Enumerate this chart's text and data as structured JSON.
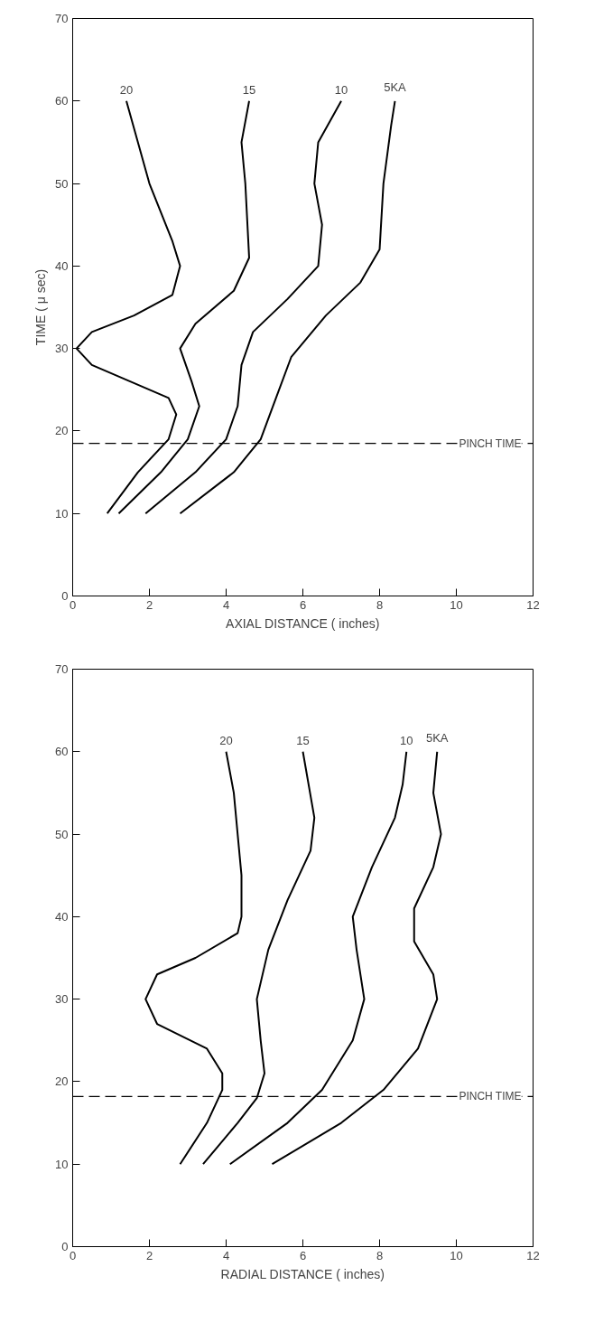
{
  "chart_data": [
    {
      "type": "line",
      "xlabel": "AXIAL DISTANCE ( inches)",
      "ylabel": "TIME ( μ sec)",
      "xlim": [
        0,
        12
      ],
      "ylim": [
        0,
        70
      ],
      "xticks": [
        0,
        2,
        4,
        6,
        8,
        10,
        12
      ],
      "yticks": [
        0,
        10,
        20,
        30,
        40,
        50,
        60,
        70
      ],
      "grid": false,
      "ref_lines": [
        {
          "axis": "y",
          "value": 18.5,
          "label": "PINCH TIME",
          "line_style": "dashed"
        }
      ],
      "series": [
        {
          "name": "20",
          "color": "#000000",
          "x": [
            0.9,
            1.7,
            2.5,
            2.7,
            2.5,
            1.5,
            0.5,
            0.1,
            0.5,
            1.6,
            2.6,
            2.8,
            2.6,
            2.0,
            1.4
          ],
          "values": [
            10,
            15,
            19,
            22,
            24,
            26,
            28,
            30,
            32,
            34,
            36.5,
            40,
            43,
            50,
            60
          ]
        },
        {
          "name": "15",
          "color": "#000000",
          "x": [
            1.2,
            2.3,
            3.0,
            3.3,
            3.1,
            2.8,
            3.2,
            4.2,
            4.6,
            4.5,
            4.4,
            4.6
          ],
          "values": [
            10,
            15,
            19,
            23,
            26,
            30,
            33,
            37,
            41,
            50,
            55,
            60
          ]
        },
        {
          "name": "10",
          "color": "#000000",
          "x": [
            1.9,
            3.2,
            4.0,
            4.3,
            4.4,
            4.7,
            5.6,
            6.4,
            6.5,
            6.3,
            6.4,
            7.0
          ],
          "values": [
            10,
            15,
            19,
            23,
            28,
            32,
            36,
            40,
            45,
            50,
            55,
            60
          ]
        },
        {
          "name": "5KA",
          "color": "#000000",
          "x": [
            2.8,
            4.2,
            4.9,
            5.3,
            5.7,
            6.6,
            7.5,
            8.0,
            8.1,
            8.3,
            8.4
          ],
          "values": [
            10,
            15,
            19,
            24,
            29,
            34,
            38,
            42,
            50,
            57,
            60
          ]
        }
      ]
    },
    {
      "type": "line",
      "xlabel": "RADIAL DISTANCE ( inches)",
      "xlim": [
        0,
        12
      ],
      "ylim": [
        0,
        70
      ],
      "xticks": [
        0,
        2,
        4,
        6,
        8,
        10,
        12
      ],
      "yticks": [
        0,
        10,
        20,
        30,
        40,
        50,
        60,
        70
      ],
      "grid": false,
      "ref_lines": [
        {
          "axis": "y",
          "value": 18.2,
          "label": "PINCH TIME",
          "line_style": "dashed"
        }
      ],
      "series": [
        {
          "name": "20",
          "color": "#000000",
          "x": [
            2.8,
            3.5,
            3.9,
            3.9,
            3.5,
            2.2,
            1.9,
            2.2,
            3.2,
            4.3,
            4.4,
            4.4,
            4.3,
            4.2,
            4.0
          ],
          "values": [
            10,
            15,
            19,
            21,
            24,
            27,
            30,
            33,
            35,
            38,
            40,
            45,
            50,
            55,
            60
          ]
        },
        {
          "name": "15",
          "color": "#000000",
          "x": [
            3.4,
            4.3,
            4.8,
            5.0,
            4.9,
            4.8,
            5.1,
            5.6,
            6.2,
            6.3,
            6.0
          ],
          "values": [
            10,
            15,
            18,
            21,
            25,
            30,
            36,
            42,
            48,
            52,
            60
          ]
        },
        {
          "name": "10",
          "color": "#000000",
          "x": [
            4.1,
            5.6,
            6.5,
            7.3,
            7.6,
            7.4,
            7.3,
            7.8,
            8.4,
            8.6,
            8.7
          ],
          "values": [
            10,
            15,
            19,
            25,
            30,
            36,
            40,
            46,
            52,
            56,
            60
          ]
        },
        {
          "name": "5KA",
          "color": "#000000",
          "x": [
            5.2,
            7.0,
            8.1,
            9.0,
            9.5,
            9.4,
            8.9,
            8.9,
            9.4,
            9.6,
            9.4,
            9.5
          ],
          "values": [
            10,
            15,
            19,
            24,
            30,
            33,
            37,
            41,
            46,
            50,
            55,
            60
          ]
        }
      ]
    }
  ]
}
